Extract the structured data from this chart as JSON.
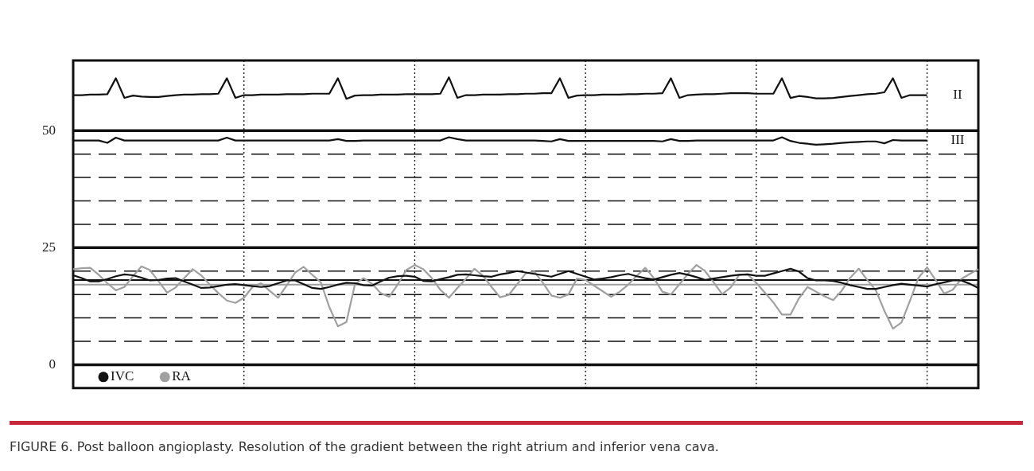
{
  "chart_data": {
    "type": "line",
    "categories": [
      null,
      null,
      null,
      null,
      null,
      null,
      null,
      null,
      null,
      null,
      null,
      null,
      null,
      null,
      null,
      null,
      null,
      null,
      null,
      null,
      null,
      null,
      null,
      null,
      null,
      null,
      null,
      null,
      null,
      null,
      null,
      null,
      null,
      null,
      null,
      null,
      null,
      null,
      null,
      null,
      null,
      null,
      null,
      null,
      null,
      null,
      null,
      null,
      null,
      null,
      null,
      null,
      null,
      null,
      null,
      null,
      null,
      null,
      null,
      null,
      null,
      null,
      null,
      null,
      null,
      null,
      null,
      null,
      null,
      null,
      null,
      null,
      null,
      null,
      null,
      null,
      null,
      null,
      null,
      null,
      null,
      null,
      null,
      null,
      null,
      null,
      null,
      null,
      null,
      null,
      null,
      null,
      null,
      null,
      null,
      null,
      null,
      null,
      null,
      null,
      null,
      null,
      null,
      null,
      null,
      null,
      null
    ],
    "ylim": [
      -5,
      65
    ],
    "yticks": [
      0,
      {
        "value": 5,
        "label": null
      },
      {
        "value": 10,
        "label": null
      },
      {
        "value": 15,
        "label": null
      },
      {
        "value": 20,
        "label": null
      },
      25,
      {
        "value": 30,
        "label": null
      },
      {
        "value": 35,
        "label": null
      },
      {
        "value": 40,
        "label": null
      },
      {
        "value": 45,
        "label": null
      },
      50
    ],
    "tick_labels": "y",
    "grid": true,
    "marker": "none",
    "line_style": "solid",
    "legend": "bottom left",
    "ref_lines": [
      {
        "axis": "y",
        "value": 18.1,
        "color": "#111111"
      },
      {
        "axis": "y",
        "value": 17.1,
        "color": "#a0a0a0"
      }
    ],
    "series": [
      {
        "name": "II",
        "color": "#111111",
        "values": [
          57.6,
          57.6,
          57.7,
          57.7,
          57.8,
          61.2,
          57.0,
          57.5,
          57.3,
          57.2,
          57.2,
          57.4,
          57.6,
          57.7,
          57.7,
          57.8,
          57.8,
          57.9,
          61.2,
          57.0,
          57.6,
          57.6,
          57.7,
          57.7,
          57.7,
          57.8,
          57.8,
          57.8,
          57.9,
          57.9,
          57.9,
          61.2,
          56.8,
          57.5,
          57.6,
          57.6,
          57.7,
          57.7,
          57.7,
          57.8,
          57.8,
          57.8,
          57.8,
          57.9,
          61.4,
          57.0,
          57.6,
          57.6,
          57.7,
          57.7,
          57.7,
          57.8,
          57.8,
          57.9,
          57.9,
          58.0,
          58.0,
          61.2,
          57.0,
          57.5,
          57.6,
          57.6,
          57.7,
          57.7,
          57.7,
          57.8,
          57.8,
          57.9,
          57.9,
          58.0,
          61.2,
          57.0,
          57.6,
          57.7,
          57.8,
          57.8,
          57.9,
          58.0,
          58.0,
          58.0,
          57.9,
          57.9,
          57.9,
          61.2,
          57.0,
          57.4,
          57.2,
          56.9,
          56.9,
          57.0,
          57.2,
          57.4,
          57.6,
          57.8,
          57.9,
          58.2,
          61.2,
          57.0,
          57.6,
          57.6,
          57.6,
          null,
          null,
          null,
          null,
          null,
          null
        ]
      },
      {
        "name": "III",
        "color": "#111111",
        "values": [
          47.9,
          47.9,
          47.9,
          47.9,
          47.4,
          48.5,
          47.9,
          47.9,
          47.9,
          47.9,
          47.9,
          47.9,
          47.9,
          47.9,
          47.9,
          47.9,
          47.9,
          47.9,
          48.5,
          47.9,
          47.9,
          47.9,
          47.9,
          47.9,
          47.9,
          47.9,
          47.9,
          47.9,
          47.9,
          47.9,
          47.9,
          48.2,
          47.8,
          47.8,
          47.9,
          47.9,
          47.9,
          47.9,
          47.9,
          47.9,
          47.9,
          47.9,
          47.9,
          47.9,
          48.6,
          48.2,
          47.9,
          47.9,
          47.9,
          47.9,
          47.9,
          47.9,
          47.9,
          47.9,
          47.9,
          47.8,
          47.7,
          48.2,
          47.8,
          47.8,
          47.8,
          47.8,
          47.8,
          47.8,
          47.8,
          47.8,
          47.8,
          47.8,
          47.8,
          47.7,
          48.2,
          47.8,
          47.8,
          47.9,
          47.9,
          47.9,
          47.9,
          47.9,
          47.9,
          47.9,
          47.9,
          47.9,
          47.9,
          48.6,
          47.8,
          47.4,
          47.2,
          47.0,
          47.1,
          47.2,
          47.4,
          47.5,
          47.6,
          47.7,
          47.7,
          47.3,
          48.0,
          47.9,
          47.9,
          47.9,
          47.9,
          null,
          null,
          null,
          null,
          null,
          null
        ]
      },
      {
        "name": "IVC",
        "color": "#111111",
        "values": [
          19.1,
          18.5,
          17.8,
          17.8,
          18.3,
          18.9,
          19.3,
          19.1,
          18.6,
          18.0,
          18.1,
          18.4,
          18.5,
          17.8,
          17.1,
          16.4,
          16.5,
          16.8,
          17.1,
          17.2,
          17.0,
          16.8,
          16.6,
          16.8,
          17.4,
          18.0,
          18.0,
          17.2,
          16.4,
          16.2,
          16.6,
          17.1,
          17.5,
          17.4,
          17.0,
          16.9,
          17.8,
          18.6,
          18.9,
          19.0,
          18.8,
          17.9,
          17.8,
          18.3,
          18.7,
          19.2,
          19.3,
          19.1,
          18.9,
          18.8,
          19.3,
          19.6,
          20.0,
          19.7,
          19.4,
          19.1,
          18.8,
          19.4,
          20.0,
          19.4,
          18.8,
          18.2,
          18.4,
          18.7,
          19.1,
          19.4,
          18.9,
          18.5,
          18.2,
          18.7,
          19.2,
          19.6,
          19.2,
          18.7,
          18.1,
          18.4,
          18.7,
          19.0,
          19.2,
          19.3,
          19.0,
          19.0,
          19.5,
          20.0,
          20.5,
          19.9,
          18.5,
          18.0,
          18.0,
          17.9,
          17.5,
          17.0,
          16.6,
          16.2,
          16.2,
          16.6,
          17.0,
          17.3,
          17.1,
          16.9,
          16.7,
          17.2,
          17.6,
          18.0,
          18.0,
          17.3,
          16.4
        ]
      },
      {
        "name": "RA",
        "color": "#a0a0a0",
        "values": [
          20.4,
          20.6,
          20.7,
          19.2,
          17.4,
          15.9,
          16.6,
          18.9,
          21.0,
          20.2,
          17.8,
          15.4,
          16.5,
          18.5,
          20.4,
          19.1,
          17.1,
          15.3,
          13.7,
          13.2,
          14.3,
          16.6,
          17.4,
          15.8,
          14.3,
          16.9,
          19.7,
          20.9,
          19.2,
          17.6,
          12.3,
          8.2,
          9.1,
          17.2,
          18.5,
          17.3,
          15.3,
          14.5,
          17.1,
          20.2,
          21.3,
          20.4,
          18.5,
          16.0,
          14.3,
          16.4,
          18.4,
          20.5,
          19.0,
          16.6,
          14.4,
          14.9,
          17.2,
          19.5,
          19.9,
          17.5,
          14.8,
          14.3,
          15.0,
          18.4,
          18.1,
          16.9,
          15.7,
          14.5,
          15.6,
          17.1,
          19.0,
          20.7,
          18.5,
          15.6,
          15.0,
          17.2,
          19.4,
          21.3,
          20.0,
          17.6,
          15.1,
          16.5,
          19.2,
          19.3,
          17.5,
          15.4,
          13.3,
          10.7,
          10.7,
          14.2,
          16.6,
          15.6,
          14.6,
          13.8,
          15.8,
          18.6,
          20.5,
          18.1,
          15.9,
          11.5,
          7.7,
          9.0,
          13.7,
          18.6,
          20.8,
          18.1,
          15.2,
          16.0,
          18.3,
          19.4,
          20.4
        ]
      }
    ],
    "annotations": [
      "FIGURE 6. Post balloon angioplasty. Resolution of the gradient between the right atrium and inferior vena cava."
    ]
  }
}
